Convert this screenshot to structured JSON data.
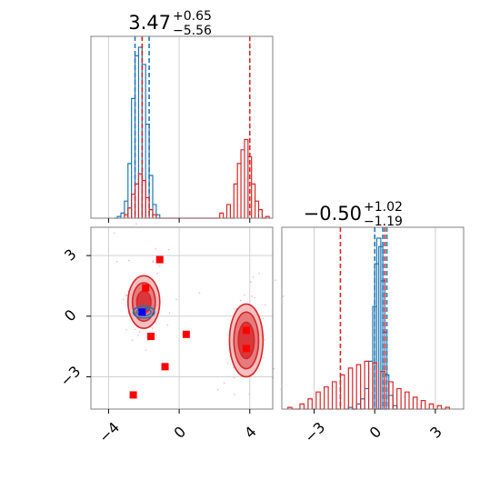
{
  "chart_data": [
    {
      "type": "histogram",
      "panel": "x marginal (top-left)",
      "title": {
        "median": "3.47",
        "plus": "+0.65",
        "minus": "−5.56"
      },
      "x_range": [
        -5,
        5.3
      ],
      "x_ticks": [
        -4,
        0,
        4
      ],
      "grid": true,
      "series": [
        {
          "name": "",
          "color": "#1f77b4",
          "bins": [
            [
              -3.6,
              0.0
            ],
            [
              -3.4,
              0.01
            ],
            [
              -3.2,
              0.03
            ],
            [
              -3.0,
              0.1
            ],
            [
              -2.8,
              0.32
            ],
            [
              -2.6,
              0.7
            ],
            [
              -2.4,
              0.95
            ],
            [
              -2.2,
              1.0
            ],
            [
              -2.0,
              0.9
            ],
            [
              -1.8,
              0.55
            ],
            [
              -1.6,
              0.25
            ],
            [
              -1.4,
              0.08
            ],
            [
              -1.2,
              0.02
            ]
          ],
          "quantiles": [
            -2.5,
            -2.1,
            -1.7
          ]
        },
        {
          "name": "",
          "color": "#d62728",
          "bins": [
            [
              -3.0,
              0.02
            ],
            [
              -2.8,
              0.06
            ],
            [
              -2.6,
              0.14
            ],
            [
              -2.4,
              0.2
            ],
            [
              -2.2,
              0.26
            ],
            [
              -2.0,
              0.22
            ],
            [
              -1.8,
              0.12
            ],
            [
              -1.6,
              0.05
            ],
            [
              -1.4,
              0.02
            ],
            [
              2.4,
              0.03
            ],
            [
              2.8,
              0.08
            ],
            [
              3.2,
              0.2
            ],
            [
              3.4,
              0.32
            ],
            [
              3.6,
              0.4
            ],
            [
              3.8,
              0.46
            ],
            [
              4.0,
              0.36
            ],
            [
              4.2,
              0.2
            ],
            [
              4.4,
              0.1
            ],
            [
              4.6,
              0.05
            ],
            [
              5.0,
              0.01
            ]
          ],
          "quantiles": [
            -2.1,
            4.0
          ]
        }
      ]
    },
    {
      "type": "scatter",
      "panel": "2D joint (bottom-left)",
      "x_range": [
        -5,
        5.3
      ],
      "y_range": [
        -4.6,
        4.4
      ],
      "x_ticks": [
        -4,
        0,
        4
      ],
      "y_ticks": [
        3,
        0,
        -3
      ],
      "grid": true,
      "contours": [
        {
          "color": "#d62728",
          "center": [
            -2.0,
            0.7
          ],
          "levels": [
            [
              0.9,
              1.3
            ],
            [
              0.65,
              0.95
            ],
            [
              0.4,
              0.55
            ]
          ]
        },
        {
          "color": "#d62728",
          "center": [
            3.8,
            -1.2
          ],
          "levels": [
            [
              0.95,
              1.8
            ],
            [
              0.7,
              1.4
            ],
            [
              0.45,
              0.9
            ]
          ]
        },
        {
          "color": "#1f77b4",
          "center": [
            -2.0,
            0.2
          ],
          "levels": [
            [
              0.6,
              0.3
            ],
            [
              0.4,
              0.18
            ]
          ]
        }
      ],
      "points": [
        {
          "color": "#ff0000",
          "xy": [
            [
              -1.1,
              2.8
            ],
            [
              -1.9,
              1.4
            ],
            [
              -1.6,
              -1.0
            ],
            [
              0.4,
              -0.9
            ],
            [
              -0.8,
              -2.5
            ],
            [
              3.8,
              -0.7
            ],
            [
              3.8,
              -1.6
            ],
            [
              -2.6,
              -3.9
            ]
          ]
        },
        {
          "color": "#0000ff",
          "xy": [
            [
              -2.1,
              0.2
            ]
          ]
        }
      ]
    },
    {
      "type": "histogram",
      "panel": "y marginal (bottom-right)",
      "title": {
        "median": "−0.50",
        "plus": "+1.02",
        "minus": "−1.19"
      },
      "x_range": [
        -4.6,
        4.4
      ],
      "x_ticks": [
        -3,
        0,
        3
      ],
      "grid": true,
      "series": [
        {
          "name": "",
          "color": "#1f77b4",
          "bins": [
            [
              -1.2,
              0.01
            ],
            [
              -0.8,
              0.03
            ],
            [
              -0.6,
              0.06
            ],
            [
              -0.4,
              0.12
            ],
            [
              -0.2,
              0.28
            ],
            [
              0.0,
              0.6
            ],
            [
              0.1,
              0.85
            ],
            [
              0.2,
              1.0
            ],
            [
              0.3,
              0.95
            ],
            [
              0.4,
              0.75
            ],
            [
              0.5,
              0.45
            ],
            [
              0.6,
              0.2
            ],
            [
              0.8,
              0.08
            ],
            [
              1.0,
              0.02
            ]
          ],
          "quantiles": [
            0.0,
            0.4,
            0.6
          ]
        },
        {
          "name": "",
          "color": "#d62728",
          "bins": [
            [
              -4.2,
              0.01
            ],
            [
              -3.6,
              0.03
            ],
            [
              -3.2,
              0.06
            ],
            [
              -2.8,
              0.1
            ],
            [
              -2.4,
              0.13
            ],
            [
              -2.0,
              0.16
            ],
            [
              -1.6,
              0.2
            ],
            [
              -1.2,
              0.24
            ],
            [
              -0.8,
              0.26
            ],
            [
              -0.4,
              0.28
            ],
            [
              0.0,
              0.27
            ],
            [
              0.4,
              0.22
            ],
            [
              0.8,
              0.16
            ],
            [
              1.2,
              0.12
            ],
            [
              1.6,
              0.1
            ],
            [
              2.0,
              0.07
            ],
            [
              2.4,
              0.05
            ],
            [
              2.8,
              0.03
            ],
            [
              3.2,
              0.02
            ],
            [
              3.6,
              0.01
            ]
          ],
          "quantiles": [
            -1.7,
            0.5
          ]
        }
      ]
    }
  ]
}
